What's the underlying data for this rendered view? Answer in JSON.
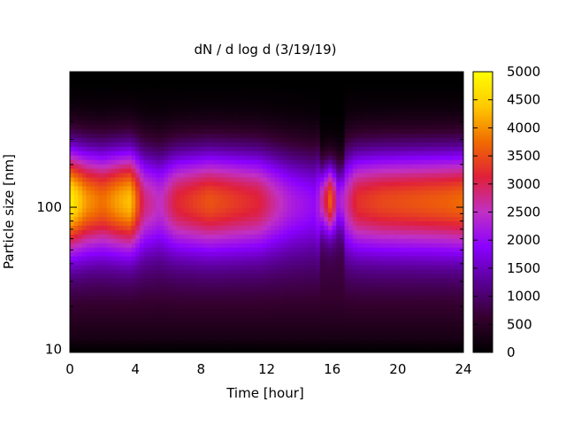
{
  "chart_data": {
    "type": "heatmap",
    "title": "dN / d log d (3/19/19)",
    "xlabel": "Time [hour]",
    "ylabel": "Particle size [nm]",
    "xlim": [
      0,
      24
    ],
    "x_ticks": [
      "0",
      "4",
      "8",
      "12",
      "16",
      "20",
      "24"
    ],
    "y_scale": "log",
    "ylim_nm": [
      9.5,
      900
    ],
    "y_ticks": [
      "10",
      "100"
    ],
    "colorbar": {
      "range": [
        0,
        5000
      ],
      "ticks": [
        "0",
        "500",
        "1000",
        "1500",
        "2000",
        "2500",
        "3000",
        "3500",
        "4000",
        "4500",
        "5000"
      ],
      "palette": [
        "#000000",
        "#35002e",
        "#5a0095",
        "#8a00ff",
        "#c030c4",
        "#e0203a",
        "#f06b00",
        "#ffc800",
        "#ffff00"
      ]
    },
    "size_profile_peak_nm": 115,
    "time_profile": [
      {
        "hour": 0,
        "peak": 4600
      },
      {
        "hour": 1,
        "peak": 3800
      },
      {
        "hour": 2,
        "peak": 3500
      },
      {
        "hour": 3,
        "peak": 3900
      },
      {
        "hour": 3.7,
        "peak": 4100
      },
      {
        "hour": 4.5,
        "peak": 2600
      },
      {
        "hour": 5.5,
        "peak": 2200
      },
      {
        "hour": 6.5,
        "peak": 2900
      },
      {
        "hour": 7.5,
        "peak": 3100
      },
      {
        "hour": 8.5,
        "peak": 3300
      },
      {
        "hour": 10,
        "peak": 3100
      },
      {
        "hour": 11.5,
        "peak": 2900
      },
      {
        "hour": 12.5,
        "peak": 2400
      },
      {
        "hour": 13.5,
        "peak": 2000
      },
      {
        "hour": 15,
        "peak": 1700
      },
      {
        "hour": 15.9,
        "peak": 3400
      },
      {
        "hour": 16.4,
        "peak": 1900
      },
      {
        "hour": 17.5,
        "peak": 3000
      },
      {
        "hour": 19,
        "peak": 3200
      },
      {
        "hour": 21,
        "peak": 3300
      },
      {
        "hour": 23,
        "peak": 3400
      },
      {
        "hour": 24,
        "peak": 3500
      }
    ]
  }
}
